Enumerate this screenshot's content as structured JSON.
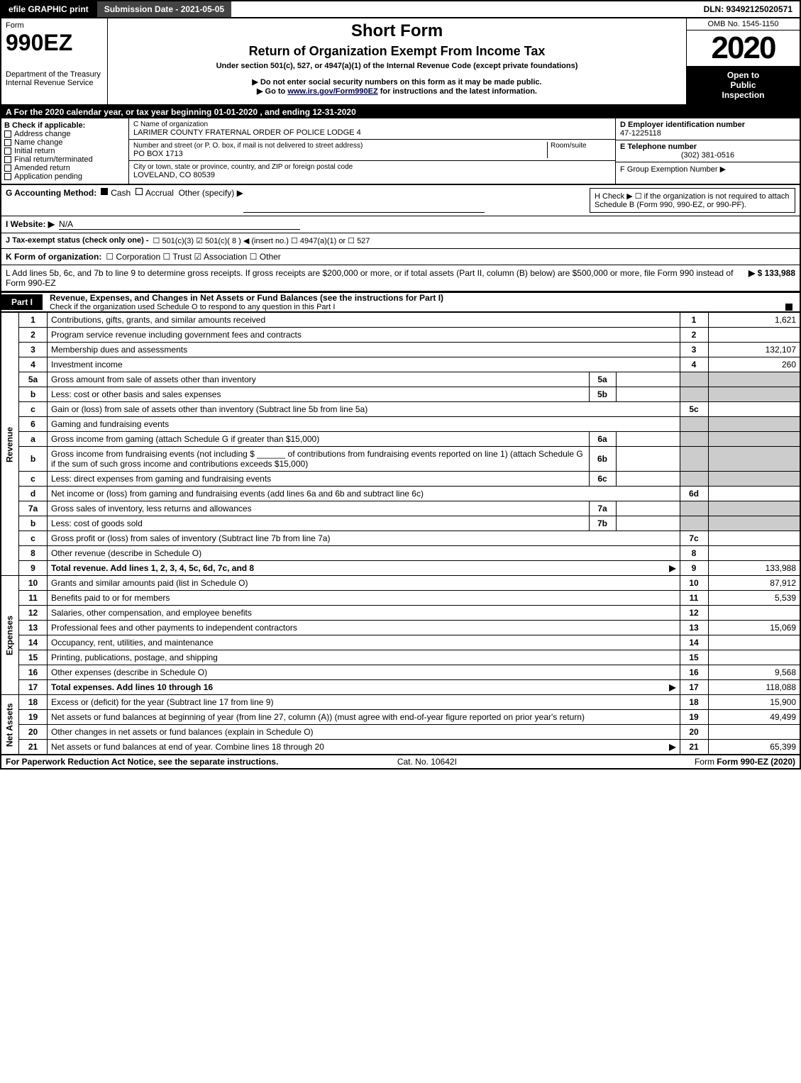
{
  "topbar": {
    "efile": "efile GRAPHIC print",
    "submission": "Submission Date - 2021-05-05",
    "dln": "DLN: 93492125020571"
  },
  "header": {
    "form_label": "Form",
    "form_num": "990EZ",
    "dept1": "Department of the Treasury",
    "dept2": "Internal Revenue Service",
    "title1": "Short Form",
    "title2": "Return of Organization Exempt From Income Tax",
    "subtitle": "Under section 501(c), 527, or 4947(a)(1) of the Internal Revenue Code (except private foundations)",
    "note1": "▶ Do not enter social security numbers on this form as it may be made public.",
    "note2_pre": "▶ Go to ",
    "note2_link": "www.irs.gov/Form990EZ",
    "note2_post": " for instructions and the latest information.",
    "omb": "OMB No. 1545-1150",
    "year": "2020",
    "open1": "Open to",
    "open2": "Public",
    "open3": "Inspection"
  },
  "strip_a": "A  For the 2020 calendar year, or tax year beginning 01-01-2020 , and ending 12-31-2020",
  "checkB": {
    "label": "B  Check if applicable:",
    "opts": [
      "Address change",
      "Name change",
      "Initial return",
      "Final return/terminated",
      "Amended return",
      "Application pending"
    ]
  },
  "c": {
    "label_name": "C Name of organization",
    "name": "LARIMER COUNTY FRATERNAL ORDER OF POLICE LODGE 4",
    "label_addr": "Number and street (or P. O. box, if mail is not delivered to street address)",
    "room": "Room/suite",
    "addr": "PO BOX 1713",
    "label_city": "City or town, state or province, country, and ZIP or foreign postal code",
    "city": "LOVELAND, CO  80539"
  },
  "d": {
    "label": "D Employer identification number",
    "val": "47-1225118"
  },
  "e": {
    "label": "E Telephone number",
    "val": "(302) 381-0516"
  },
  "f": {
    "label": "F Group Exemption Number  ▶",
    "val": ""
  },
  "g": {
    "label": "G Accounting Method:",
    "cash": "Cash",
    "accrual": "Accrual",
    "other": "Other (specify) ▶"
  },
  "h": {
    "text": "H  Check ▶ ☐ if the organization is not required to attach Schedule B (Form 990, 990-EZ, or 990-PF)."
  },
  "i": {
    "label": "I Website: ▶",
    "val": "N/A"
  },
  "j": {
    "label": "J Tax-exempt status (check only one) -",
    "opts": "☐ 501(c)(3)  ☑ 501(c)( 8 ) ◀ (insert no.)  ☐ 4947(a)(1) or  ☐ 527"
  },
  "k": {
    "label": "K Form of organization:",
    "opts": "☐ Corporation  ☐ Trust  ☑ Association  ☐ Other"
  },
  "l": {
    "text": "L Add lines 5b, 6c, and 7b to line 9 to determine gross receipts. If gross receipts are $200,000 or more, or if total assets (Part II, column (B) below) are $500,000 or more, file Form 990 instead of Form 990-EZ",
    "amount": "▶ $ 133,988"
  },
  "part1": {
    "tab": "Part I",
    "title": "Revenue, Expenses, and Changes in Net Assets or Fund Balances (see the instructions for Part I)",
    "checknote": "Check if the organization used Schedule O to respond to any question in this Part I",
    "revenue_label": "Revenue",
    "expenses_label": "Expenses",
    "netassets_label": "Net Assets",
    "rows": [
      {
        "n": "1",
        "desc": "Contributions, gifts, grants, and similar amounts received",
        "box": "1",
        "amt": "1,621"
      },
      {
        "n": "2",
        "desc": "Program service revenue including government fees and contracts",
        "box": "2",
        "amt": ""
      },
      {
        "n": "3",
        "desc": "Membership dues and assessments",
        "box": "3",
        "amt": "132,107"
      },
      {
        "n": "4",
        "desc": "Investment income",
        "box": "4",
        "amt": "260"
      },
      {
        "n": "5a",
        "desc": "Gross amount from sale of assets other than inventory",
        "sub": "5a",
        "subamt": "",
        "shade": true
      },
      {
        "n": "b",
        "desc": "Less: cost or other basis and sales expenses",
        "sub": "5b",
        "subamt": "",
        "shade": true
      },
      {
        "n": "c",
        "desc": "Gain or (loss) from sale of assets other than inventory (Subtract line 5b from line 5a)",
        "box": "5c",
        "amt": ""
      },
      {
        "n": "6",
        "desc": "Gaming and fundraising events",
        "shadefull": true
      },
      {
        "n": "a",
        "desc": "Gross income from gaming (attach Schedule G if greater than $15,000)",
        "sub": "6a",
        "subamt": "",
        "shade": true
      },
      {
        "n": "b",
        "desc": "Gross income from fundraising events (not including $ ______ of contributions from fundraising events reported on line 1) (attach Schedule G if the sum of such gross income and contributions exceeds $15,000)",
        "sub": "6b",
        "subamt": "",
        "shade": true
      },
      {
        "n": "c",
        "desc": "Less: direct expenses from gaming and fundraising events",
        "sub": "6c",
        "subamt": "",
        "shade": true
      },
      {
        "n": "d",
        "desc": "Net income or (loss) from gaming and fundraising events (add lines 6a and 6b and subtract line 6c)",
        "box": "6d",
        "amt": ""
      },
      {
        "n": "7a",
        "desc": "Gross sales of inventory, less returns and allowances",
        "sub": "7a",
        "subamt": "",
        "shade": true
      },
      {
        "n": "b",
        "desc": "Less: cost of goods sold",
        "sub": "7b",
        "subamt": "",
        "shade": true
      },
      {
        "n": "c",
        "desc": "Gross profit or (loss) from sales of inventory (Subtract line 7b from line 7a)",
        "box": "7c",
        "amt": ""
      },
      {
        "n": "8",
        "desc": "Other revenue (describe in Schedule O)",
        "box": "8",
        "amt": ""
      },
      {
        "n": "9",
        "desc": "Total revenue. Add lines 1, 2, 3, 4, 5c, 6d, 7c, and 8",
        "box": "9",
        "amt": "133,988",
        "bold": true,
        "arrow": true
      }
    ],
    "exp_rows": [
      {
        "n": "10",
        "desc": "Grants and similar amounts paid (list in Schedule O)",
        "box": "10",
        "amt": "87,912"
      },
      {
        "n": "11",
        "desc": "Benefits paid to or for members",
        "box": "11",
        "amt": "5,539"
      },
      {
        "n": "12",
        "desc": "Salaries, other compensation, and employee benefits",
        "box": "12",
        "amt": ""
      },
      {
        "n": "13",
        "desc": "Professional fees and other payments to independent contractors",
        "box": "13",
        "amt": "15,069"
      },
      {
        "n": "14",
        "desc": "Occupancy, rent, utilities, and maintenance",
        "box": "14",
        "amt": ""
      },
      {
        "n": "15",
        "desc": "Printing, publications, postage, and shipping",
        "box": "15",
        "amt": ""
      },
      {
        "n": "16",
        "desc": "Other expenses (describe in Schedule O)",
        "box": "16",
        "amt": "9,568"
      },
      {
        "n": "17",
        "desc": "Total expenses. Add lines 10 through 16",
        "box": "17",
        "amt": "118,088",
        "bold": true,
        "arrow": true
      }
    ],
    "net_rows": [
      {
        "n": "18",
        "desc": "Excess or (deficit) for the year (Subtract line 17 from line 9)",
        "box": "18",
        "amt": "15,900"
      },
      {
        "n": "19",
        "desc": "Net assets or fund balances at beginning of year (from line 27, column (A)) (must agree with end-of-year figure reported on prior year's return)",
        "box": "19",
        "amt": "49,499"
      },
      {
        "n": "20",
        "desc": "Other changes in net assets or fund balances (explain in Schedule O)",
        "box": "20",
        "amt": ""
      },
      {
        "n": "21",
        "desc": "Net assets or fund balances at end of year. Combine lines 18 through 20",
        "box": "21",
        "amt": "65,399",
        "arrow": true
      }
    ]
  },
  "footer": {
    "left": "For Paperwork Reduction Act Notice, see the separate instructions.",
    "mid": "Cat. No. 10642I",
    "right": "Form 990-EZ (2020)"
  }
}
